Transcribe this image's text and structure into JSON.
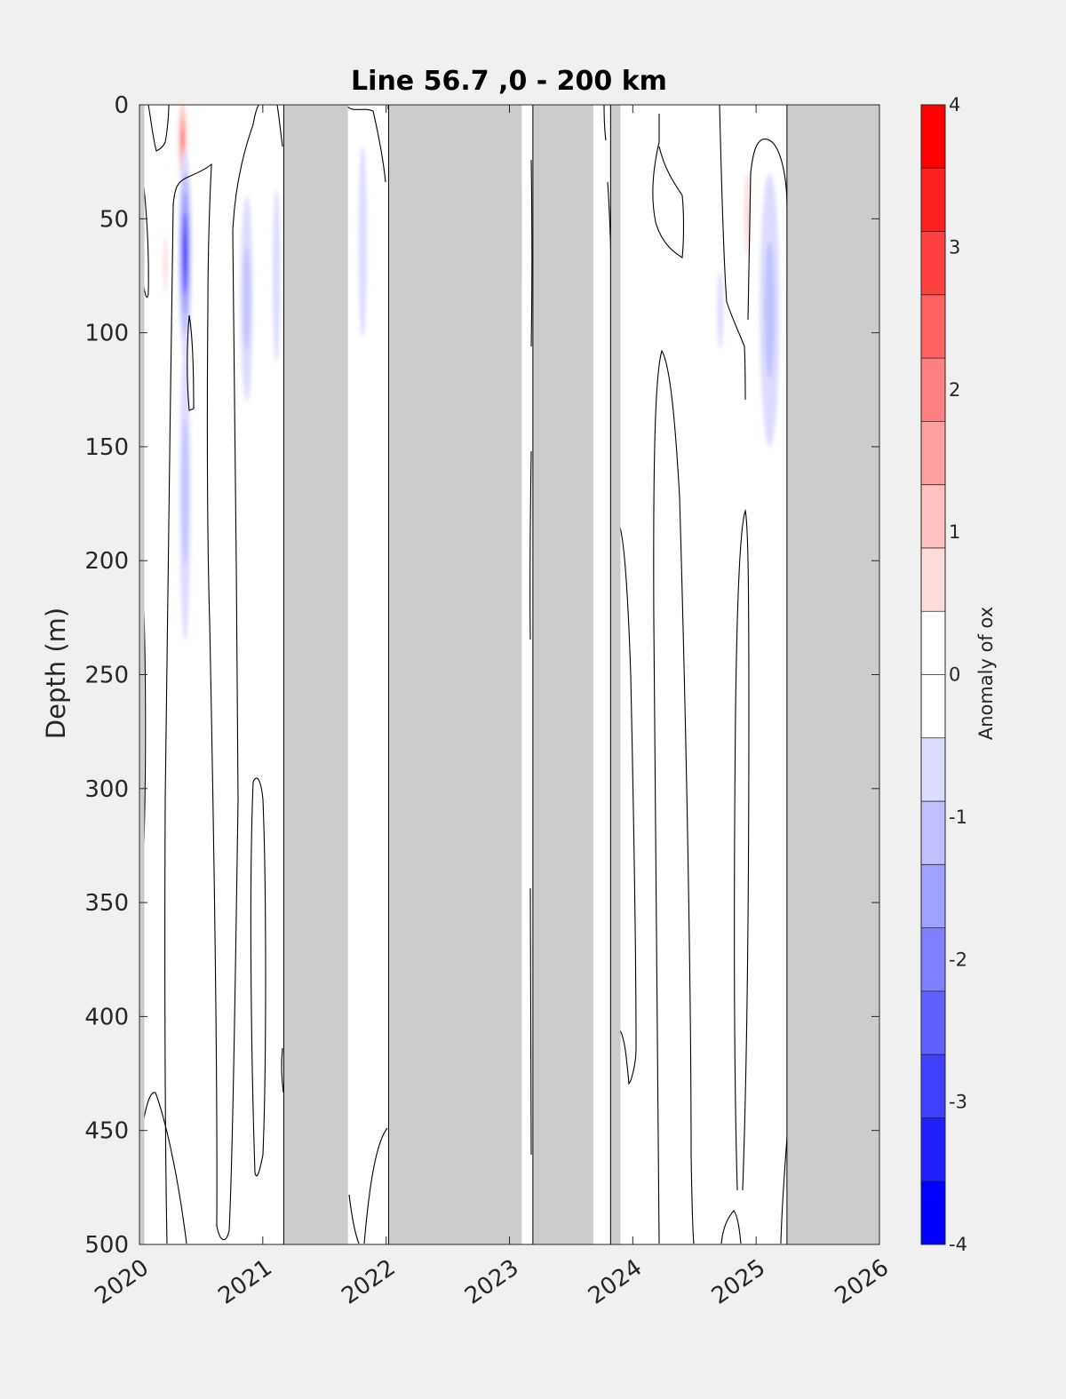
{
  "chart_data": {
    "type": "heatmap",
    "title": "Line 56.7 ,0 - 200 km",
    "xlabel": "",
    "ylabel": "Depth (m)",
    "xlim": [
      2020,
      2026
    ],
    "ylim": [
      0,
      500
    ],
    "y_reversed": true,
    "xticks": [
      "2020",
      "2021",
      "2022",
      "2023",
      "2024",
      "2025",
      "2026"
    ],
    "yticks": [
      "0",
      "50",
      "100",
      "150",
      "200",
      "250",
      "300",
      "350",
      "400",
      "450",
      "500"
    ],
    "no_data_color": "#cccccc",
    "no_data_intervals": [
      [
        2019.995,
        2020.04
      ],
      [
        2021.17,
        2021.69
      ],
      [
        2022.02,
        2023.1
      ],
      [
        2023.19,
        2023.68
      ],
      [
        2023.82,
        2023.9
      ],
      [
        2025.25,
        2026.0
      ]
    ],
    "contour_note": "zero-anomaly contour lines",
    "colorbar": {
      "label": "Anomaly of ox",
      "ticks": [
        "4",
        "3",
        "2",
        "1",
        "0",
        "-1",
        "-2",
        "-3",
        "-4"
      ],
      "levels": [
        -4,
        -3.5,
        -3,
        -2.5,
        -2,
        -1.5,
        -1,
        -0.5,
        0.5,
        1,
        1.5,
        2,
        2.5,
        3,
        3.5,
        4
      ],
      "colors_top_to_bottom": [
        "#ff0000",
        "#ff2020",
        "#ff4040",
        "#ff6060",
        "#ff8080",
        "#ffa0a0",
        "#ffc0c0",
        "#ffdcdc",
        "#ffffff",
        "#ffffff",
        "#dcdcff",
        "#c0c0ff",
        "#a0a0ff",
        "#8080ff",
        "#6060ff",
        "#4040ff",
        "#2020ff",
        "#0000ff"
      ]
    },
    "anomaly_features": [
      {
        "x": 2020.35,
        "depth_center": 15,
        "depth_half": 18,
        "width": 0.07,
        "value": 2.0
      },
      {
        "x": 2020.37,
        "depth_center": 65,
        "depth_half": 45,
        "width": 0.11,
        "value": -2.5
      },
      {
        "x": 2020.37,
        "depth_center": 170,
        "depth_half": 65,
        "width": 0.09,
        "value": -0.9
      },
      {
        "x": 2020.21,
        "depth_center": 70,
        "depth_half": 12,
        "width": 0.03,
        "value": 0.7
      },
      {
        "x": 2020.87,
        "depth_center": 85,
        "depth_half": 45,
        "width": 0.1,
        "value": -0.8
      },
      {
        "x": 2021.11,
        "depth_center": 75,
        "depth_half": 38,
        "width": 0.06,
        "value": -0.7
      },
      {
        "x": 2021.81,
        "depth_center": 60,
        "depth_half": 42,
        "width": 0.07,
        "value": -0.6
      },
      {
        "x": 2023.07,
        "depth_center": 57,
        "depth_half": 22,
        "width": 0.04,
        "value": -0.7
      },
      {
        "x": 2024.71,
        "depth_center": 90,
        "depth_half": 17,
        "width": 0.05,
        "value": -0.6
      },
      {
        "x": 2024.93,
        "depth_center": 48,
        "depth_half": 18,
        "width": 0.05,
        "value": 0.7
      },
      {
        "x": 2025.11,
        "depth_center": 90,
        "depth_half": 60,
        "width": 0.16,
        "value": -0.8
      }
    ]
  }
}
